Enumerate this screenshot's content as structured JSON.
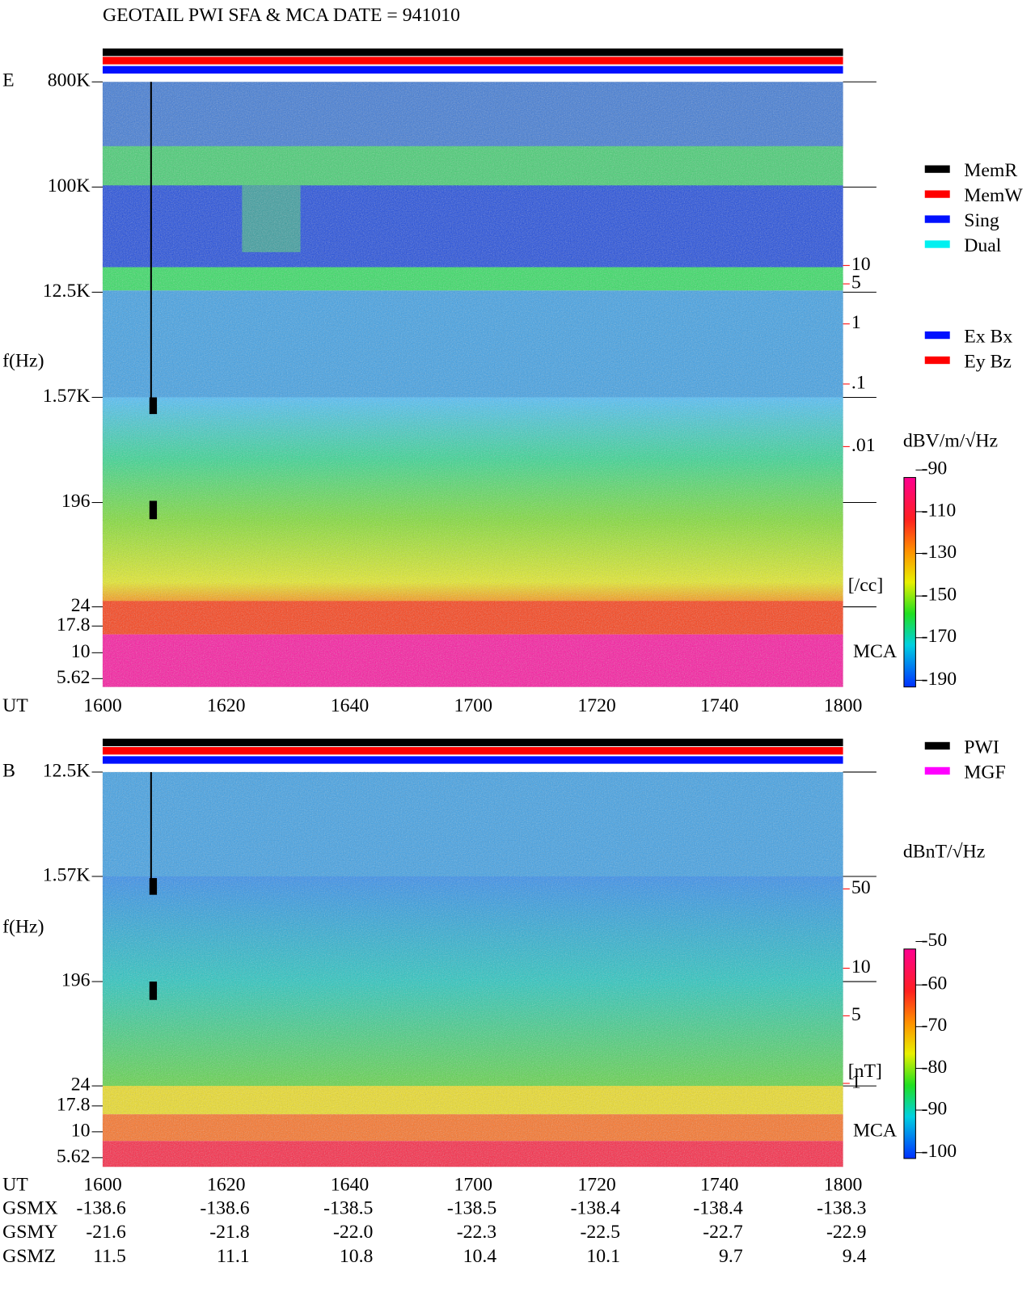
{
  "title": "GEOTAIL  PWI SFA & MCA   DATE = 941010",
  "panels": [
    {
      "label": "E",
      "ylabel": "f(Hz)",
      "yticks": [
        "800K",
        "100K",
        "12.5K",
        "1.57K",
        "196",
        "24",
        "17.8",
        "10",
        "5.62"
      ],
      "xlabel": "UT",
      "xticks": [
        "1600",
        "1620",
        "1640",
        "1700",
        "1720",
        "1740",
        "1800"
      ],
      "right_ticks": [
        "10",
        "5",
        "1",
        ".1",
        ".01"
      ],
      "right_unit": "[/cc]",
      "mca": "MCA",
      "colorbar_unit": "dBV/m/√Hz",
      "colorbar_ticks": [
        "-90",
        "-110",
        "-130",
        "-150",
        "-170",
        "-190"
      ],
      "legend": [
        {
          "name": "MemR",
          "color": "#000000"
        },
        {
          "name": "MemW",
          "color": "#ff0000"
        },
        {
          "name": "Sing",
          "color": "#0010ff"
        },
        {
          "name": "Dual",
          "color": "#00f0f0"
        },
        {
          "name": "Ex Bx",
          "color": "#0010ff"
        },
        {
          "name": "Ey Bz",
          "color": "#ff0000"
        }
      ]
    },
    {
      "label": "B",
      "ylabel": "f(Hz)",
      "yticks": [
        "12.5K",
        "1.57K",
        "196",
        "24",
        "17.8",
        "10",
        "5.62"
      ],
      "xlabel": "UT",
      "xticks": [
        "1600",
        "1620",
        "1640",
        "1700",
        "1720",
        "1740",
        "1800"
      ],
      "right_ticks": [
        "50",
        "10",
        "5",
        "1"
      ],
      "right_unit": "[nT]",
      "mca": "MCA",
      "colorbar_unit": "dBnT/√Hz",
      "colorbar_ticks": [
        "-50",
        "-60",
        "-70",
        "-80",
        "-90",
        "-100"
      ],
      "legend": [
        {
          "name": "PWI",
          "color": "#000000"
        },
        {
          "name": "MGF",
          "color": "#ff00ff"
        }
      ]
    }
  ],
  "orbit": [
    {
      "label": "GSMX",
      "values": [
        "-138.6",
        "-138.6",
        "-138.5",
        "-138.5",
        "-138.4",
        "-138.4",
        "-138.3"
      ]
    },
    {
      "label": "GSMY",
      "values": [
        "-21.6",
        "-21.8",
        "-22.0",
        "-22.3",
        "-22.5",
        "-22.7",
        "-22.9"
      ]
    },
    {
      "label": "GSMZ",
      "values": [
        "11.5",
        "11.1",
        "10.8",
        "10.4",
        "10.1",
        "9.7",
        "9.4"
      ]
    }
  ]
}
